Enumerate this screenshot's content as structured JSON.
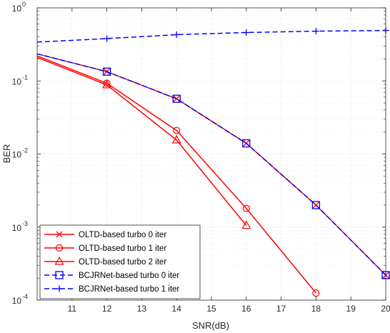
{
  "chart_data": {
    "type": "line",
    "xlabel": "SNR(dB)",
    "ylabel": "BER",
    "xlim": [
      10,
      20
    ],
    "ylim": [
      0.0001,
      1
    ],
    "y_scale": "log",
    "grid": true,
    "minor_grid": true,
    "legend_position": "bottom-left",
    "x_ticks": [
      "11",
      "12",
      "13",
      "14",
      "15",
      "16",
      "17",
      "18",
      "19",
      "20"
    ],
    "y_ticks": [
      {
        "base": "10",
        "exp": "0"
      },
      {
        "base": "10",
        "exp": "-1"
      },
      {
        "base": "10",
        "exp": "-2"
      },
      {
        "base": "10",
        "exp": "-3"
      },
      {
        "base": "10",
        "exp": "-4"
      }
    ],
    "series": [
      {
        "name": "OLTD-based turbo 0 iter",
        "color": "#ff0000",
        "dash": "solid",
        "marker": "x",
        "x": [
          10,
          12,
          14,
          16,
          18,
          20
        ],
        "y": [
          0.235,
          0.134,
          0.057,
          0.014,
          0.002,
          0.00022
        ]
      },
      {
        "name": "OLTD-based turbo 1 iter",
        "color": "#ff0000",
        "dash": "solid",
        "marker": "circle",
        "x": [
          10,
          12,
          14,
          16,
          18
        ],
        "y": [
          0.22,
          0.093,
          0.021,
          0.0018,
          0.000125
        ]
      },
      {
        "name": "OLTD-based turbo 2 iter",
        "color": "#ff0000",
        "dash": "solid",
        "marker": "triangle",
        "x": [
          10,
          12,
          14,
          16
        ],
        "y": [
          0.21,
          0.088,
          0.0155,
          0.00105
        ]
      },
      {
        "name": "BCJRNet-based turbo 0 iter",
        "color": "#0000ff",
        "dash": "dashed",
        "marker": "square",
        "x": [
          10,
          12,
          14,
          16,
          18,
          20
        ],
        "y": [
          0.235,
          0.134,
          0.057,
          0.014,
          0.002,
          0.00022
        ]
      },
      {
        "name": "BCJRNet-based turbo 1 iter",
        "color": "#0000ff",
        "dash": "dashed",
        "marker": "plus",
        "x": [
          10,
          12,
          14,
          16,
          18,
          20
        ],
        "y": [
          0.34,
          0.38,
          0.43,
          0.46,
          0.48,
          0.49
        ]
      }
    ]
  }
}
